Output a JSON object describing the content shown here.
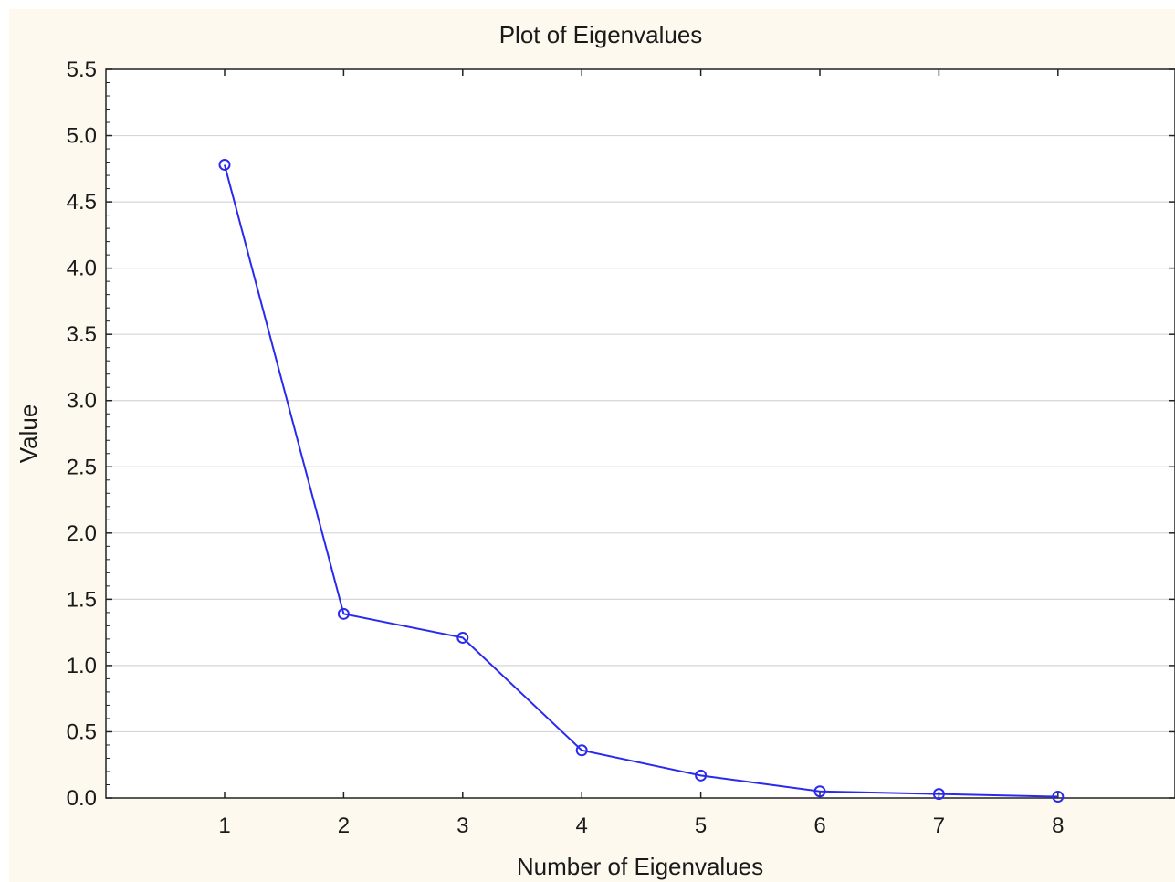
{
  "chart_data": {
    "type": "line",
    "title": "Plot of Eigenvalues",
    "xlabel": "Number of Eigenvalues",
    "ylabel": "Value",
    "x": [
      1,
      2,
      3,
      4,
      5,
      6,
      7,
      8
    ],
    "series": [
      {
        "values": [
          4.78,
          1.39,
          1.21,
          0.36,
          0.17,
          0.05,
          0.03,
          0.01
        ]
      }
    ],
    "xticks": [
      "1",
      "2",
      "3",
      "4",
      "5",
      "6",
      "7",
      "8"
    ],
    "yticks": [
      "0.0",
      "0.5",
      "1.0",
      "1.5",
      "2.0",
      "2.5",
      "3.0",
      "3.5",
      "4.0",
      "4.5",
      "5.0",
      "5.5"
    ],
    "xlim": [
      0,
      9
    ],
    "ylim": [
      0,
      5.5
    ],
    "grid": "horizontal",
    "marker": "open-circle",
    "colors": {
      "series": "#2a2aee",
      "background": "#fdf9ee",
      "plot_area": "#ffffff",
      "grid": "#d6d6d6",
      "axis": "#222222"
    }
  }
}
